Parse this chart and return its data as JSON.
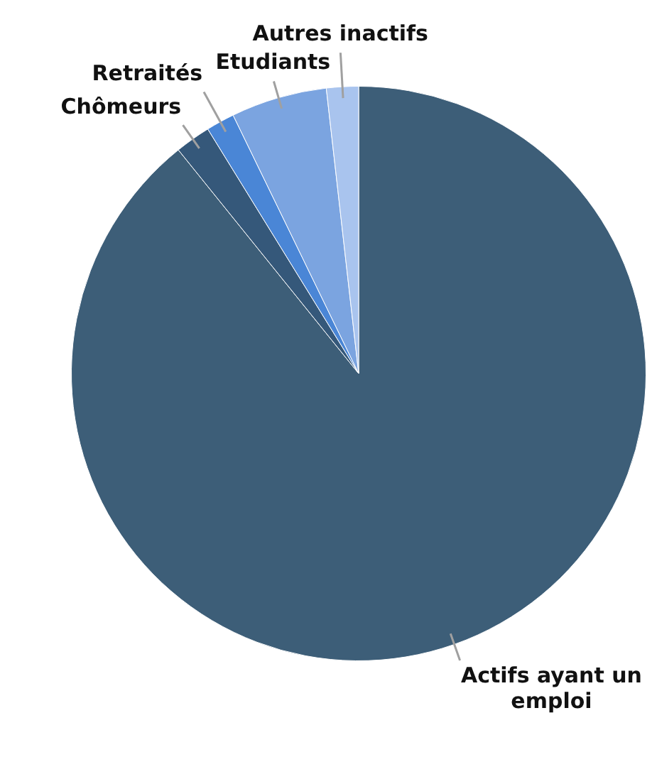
{
  "chart_data": {
    "type": "pie",
    "categories": [
      "Actifs ayant un emploi",
      "Chômeurs",
      "Retraités",
      "Etudiants",
      "Autres inactifs"
    ],
    "values": [
      89.2,
      2,
      1.6,
      5.4,
      1.8
    ],
    "colors": [
      "#3d5e78",
      "#35587a",
      "#4a86d6",
      "#7ba4e0",
      "#a9c4ee"
    ],
    "legend": false
  }
}
